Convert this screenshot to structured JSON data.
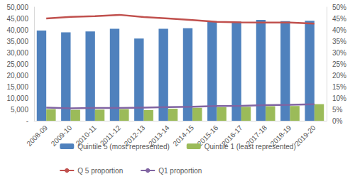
{
  "chart_data": {
    "type": "bar",
    "categories": [
      "2008-09",
      "2009-10",
      "2010-11",
      "2011-12",
      "2012-13",
      "2013-14",
      "2014-15",
      "2015-16",
      "2016-17",
      "2017-18",
      "2018-19",
      "2019-20"
    ],
    "series": [
      {
        "name": "Quintile 5 (most represented)",
        "type": "bar",
        "color": "#4f81bd",
        "values": [
          39700,
          38900,
          39300,
          40500,
          36200,
          40500,
          40700,
          43500,
          43600,
          44400,
          43800,
          44000
        ]
      },
      {
        "name": "Quintile 1 (least represented)",
        "type": "bar",
        "color": "#9bbb59",
        "values": [
          5100,
          4800,
          4900,
          5100,
          4700,
          5300,
          5700,
          6000,
          6100,
          6400,
          6500,
          7300
        ]
      },
      {
        "name": "Q 5 proportion",
        "type": "line",
        "axis": "y2",
        "color": "#c0504d",
        "values": [
          45.0,
          45.7,
          46.0,
          46.6,
          45.6,
          45.0,
          44.3,
          43.5,
          43.3,
          43.2,
          43.2,
          42.7
        ]
      },
      {
        "name": "Q1 proportion",
        "type": "line",
        "axis": "y2",
        "color": "#8064a2",
        "values": [
          5.8,
          5.5,
          5.6,
          5.6,
          5.8,
          6.0,
          6.2,
          6.5,
          6.6,
          6.9,
          7.0,
          7.3
        ]
      }
    ],
    "ylim": [
      0,
      50000
    ],
    "yticks": [
      {
        "value": 0,
        "label": "-"
      },
      {
        "value": 5000,
        "label": "5,000"
      },
      {
        "value": 10000,
        "label": "10,000"
      },
      {
        "value": 15000,
        "label": "15,000"
      },
      {
        "value": 20000,
        "label": "20,000"
      },
      {
        "value": 25000,
        "label": "25,000"
      },
      {
        "value": 30000,
        "label": "30,000"
      },
      {
        "value": 35000,
        "label": "35,000"
      },
      {
        "value": 40000,
        "label": "40,000"
      },
      {
        "value": 45000,
        "label": "45,000"
      },
      {
        "value": 50000,
        "label": "50,000"
      }
    ],
    "y2lim": [
      0,
      50
    ],
    "y2ticks": [
      {
        "value": 0,
        "label": "0%"
      },
      {
        "value": 5,
        "label": "5%"
      },
      {
        "value": 10,
        "label": "10%"
      },
      {
        "value": 15,
        "label": "15%"
      },
      {
        "value": 20,
        "label": "20%"
      },
      {
        "value": 25,
        "label": "25%"
      },
      {
        "value": 30,
        "label": "30%"
      },
      {
        "value": 35,
        "label": "35%"
      },
      {
        "value": 40,
        "label": "40%"
      },
      {
        "value": 45,
        "label": "45%"
      },
      {
        "value": 50,
        "label": "50%"
      }
    ],
    "grid": false,
    "legend": "bottom"
  }
}
